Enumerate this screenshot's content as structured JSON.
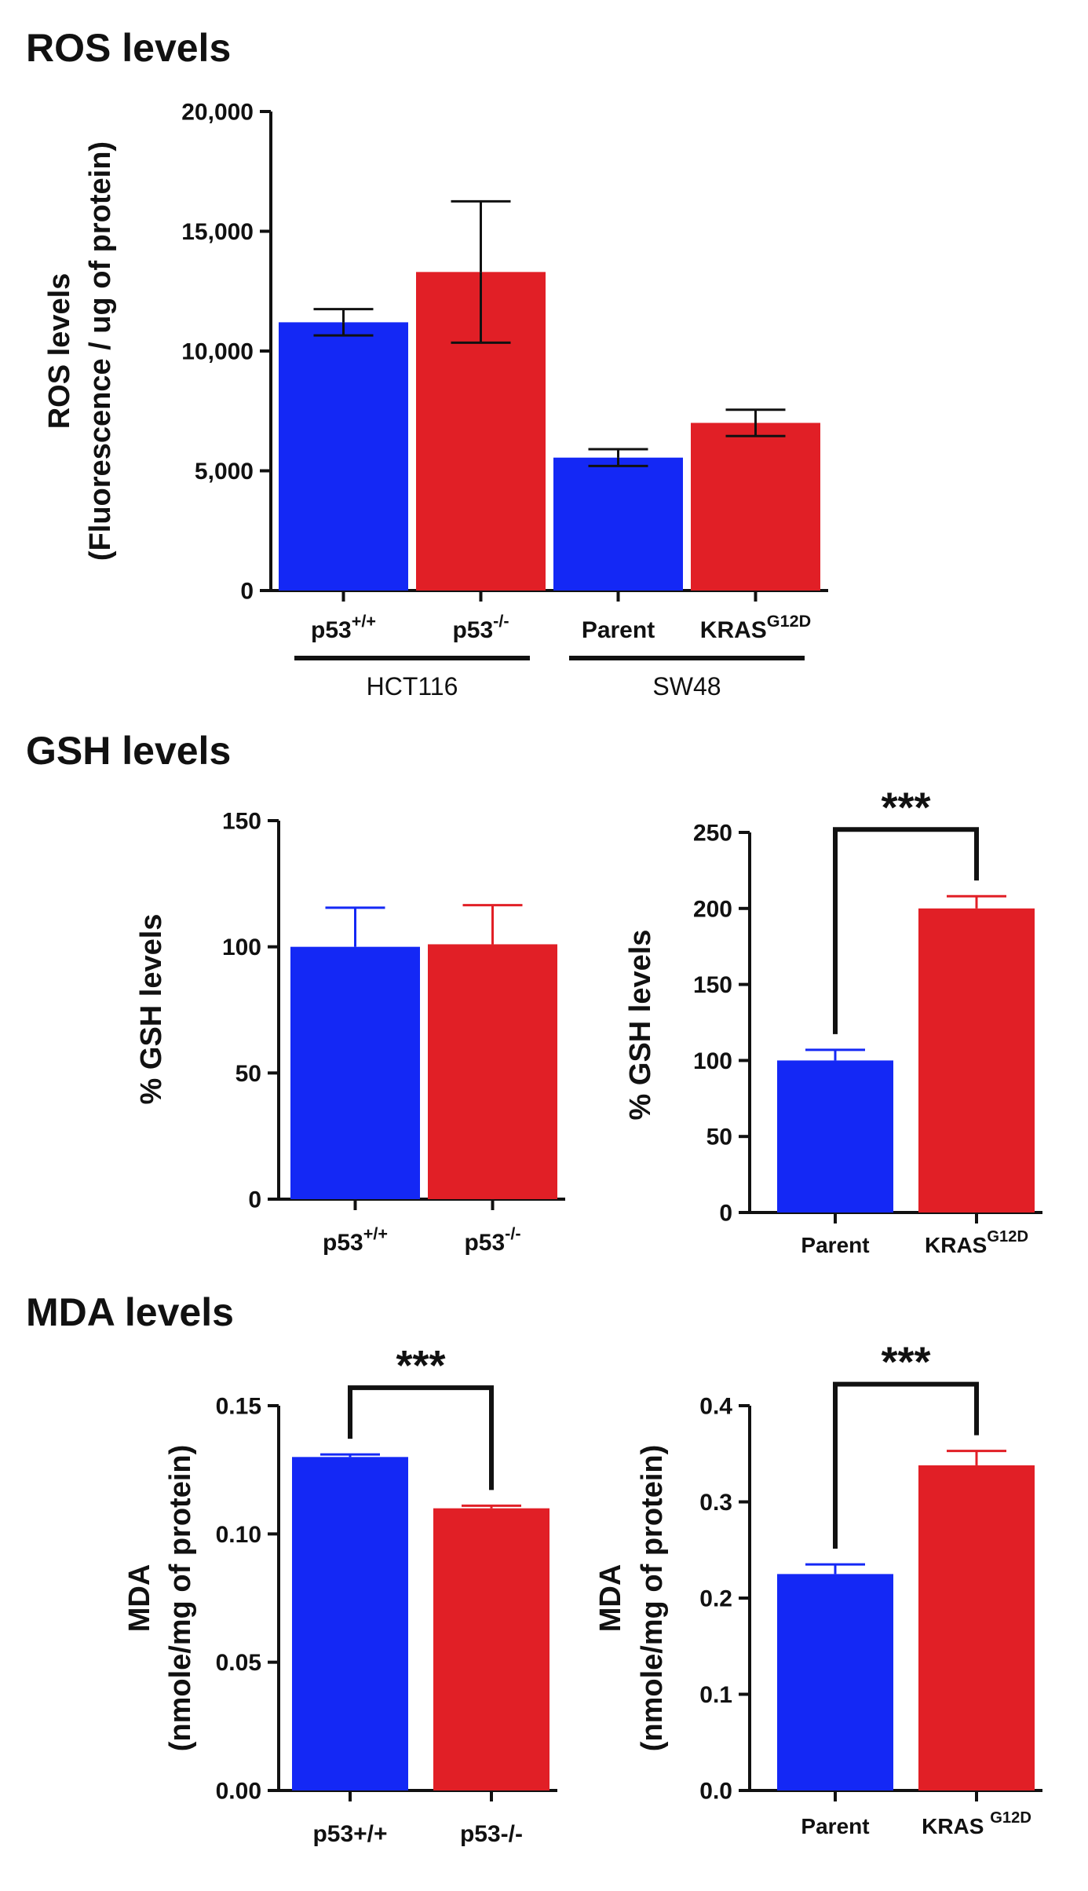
{
  "sections": [
    {
      "title": "ROS levels"
    },
    {
      "title": "GSH levels"
    },
    {
      "title": "MDA levels"
    }
  ],
  "colors": {
    "blue": "#1428f5",
    "red": "#e11f26",
    "axis": "#111111"
  },
  "chart_data": [
    {
      "type": "bar",
      "section": "ROS levels",
      "title": "",
      "ylabel": [
        "ROS levels",
        "(Fluorescence / ug of protein)"
      ],
      "ylim": [
        0,
        20000
      ],
      "yticks": [
        "0",
        "5,000",
        "10,000",
        "15,000",
        "20,000"
      ],
      "ytick_values": [
        0,
        5000,
        10000,
        15000,
        20000
      ],
      "categories": [
        {
          "base": "p53",
          "sup": "+/+"
        },
        {
          "base": "p53",
          "sup": "-/-"
        },
        {
          "base": "Parent",
          "sup": ""
        },
        {
          "base": "KRAS",
          "sup": "G12D"
        }
      ],
      "values": [
        11200,
        13300,
        5550,
        7000
      ],
      "errors": [
        550,
        2950,
        350,
        550
      ],
      "bar_colors": [
        "blue",
        "red",
        "blue",
        "red"
      ],
      "groups": [
        {
          "label": "HCT116",
          "from": 0,
          "to": 1
        },
        {
          "label": "SW48",
          "from": 2,
          "to": 3
        }
      ],
      "significance": []
    },
    {
      "type": "bar",
      "section": "GSH levels",
      "title": "",
      "ylabel": [
        "% GSH levels"
      ],
      "ylim": [
        0,
        150
      ],
      "yticks": [
        "0",
        "50",
        "100",
        "150"
      ],
      "ytick_values": [
        0,
        50,
        100,
        150
      ],
      "categories": [
        {
          "base": "p53",
          "sup": "+/+"
        },
        {
          "base": "p53",
          "sup": "-/-"
        }
      ],
      "values": [
        100,
        101
      ],
      "errors": [
        15.5,
        15.5
      ],
      "bar_colors": [
        "blue",
        "red"
      ],
      "groups": [],
      "significance": []
    },
    {
      "type": "bar",
      "section": "GSH levels",
      "title": "",
      "ylabel": [
        "% GSH levels"
      ],
      "ylim": [
        0,
        250
      ],
      "yticks": [
        "0",
        "50",
        "100",
        "150",
        "200",
        "250"
      ],
      "ytick_values": [
        0,
        50,
        100,
        150,
        200,
        250
      ],
      "categories": [
        {
          "base": "Parent",
          "sup": ""
        },
        {
          "base": "KRAS",
          "sup": "G12D"
        }
      ],
      "values": [
        100,
        200
      ],
      "errors": [
        7,
        8
      ],
      "bar_colors": [
        "blue",
        "red"
      ],
      "groups": [],
      "significance": [
        {
          "label": "***",
          "from": 0,
          "to": 1
        }
      ]
    },
    {
      "type": "bar",
      "section": "MDA levels",
      "title": "",
      "ylabel": [
        "MDA",
        "(nmole/mg of protein)"
      ],
      "ylim": [
        0,
        0.15
      ],
      "yticks": [
        "0.00",
        "0.05",
        "0.10",
        "0.15"
      ],
      "ytick_values": [
        0,
        0.05,
        0.1,
        0.15
      ],
      "categories": [
        {
          "base": "p53+/+",
          "sup": ""
        },
        {
          "base": "p53-/-",
          "sup": ""
        }
      ],
      "values": [
        0.13,
        0.11
      ],
      "errors": [
        0.001,
        0.001
      ],
      "bar_colors": [
        "blue",
        "red"
      ],
      "groups": [],
      "significance": [
        {
          "label": "***",
          "from": 0,
          "to": 1
        }
      ]
    },
    {
      "type": "bar",
      "section": "MDA levels",
      "title": "",
      "ylabel": [
        "MDA",
        "(nmole/mg of protein)"
      ],
      "ylim": [
        0,
        0.4
      ],
      "yticks": [
        "0.0",
        "0.1",
        "0.2",
        "0.3",
        "0.4"
      ],
      "ytick_values": [
        0,
        0.1,
        0.2,
        0.3,
        0.4
      ],
      "categories": [
        {
          "base": "Parent",
          "sup": ""
        },
        {
          "base": "KRAS ",
          "sup": "G12D"
        }
      ],
      "values": [
        0.225,
        0.338
      ],
      "errors": [
        0.01,
        0.015
      ],
      "bar_colors": [
        "blue",
        "red"
      ],
      "groups": [],
      "significance": [
        {
          "label": "***",
          "from": 0,
          "to": 1
        }
      ]
    }
  ]
}
